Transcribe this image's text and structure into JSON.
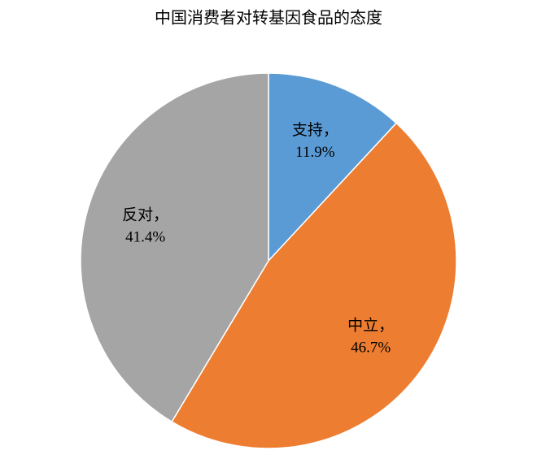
{
  "chart_data": {
    "type": "pie",
    "title": "中国消费者对转基因食品的态度",
    "categories": [
      "支持，",
      "中立，",
      "反对，"
    ],
    "values": [
      11.9,
      46.7,
      41.4
    ],
    "value_labels": [
      "11.9%",
      "46.7%",
      "41.4%"
    ],
    "colors": [
      "#5b9bd5",
      "#ed7d31",
      "#a5a5a5"
    ]
  }
}
